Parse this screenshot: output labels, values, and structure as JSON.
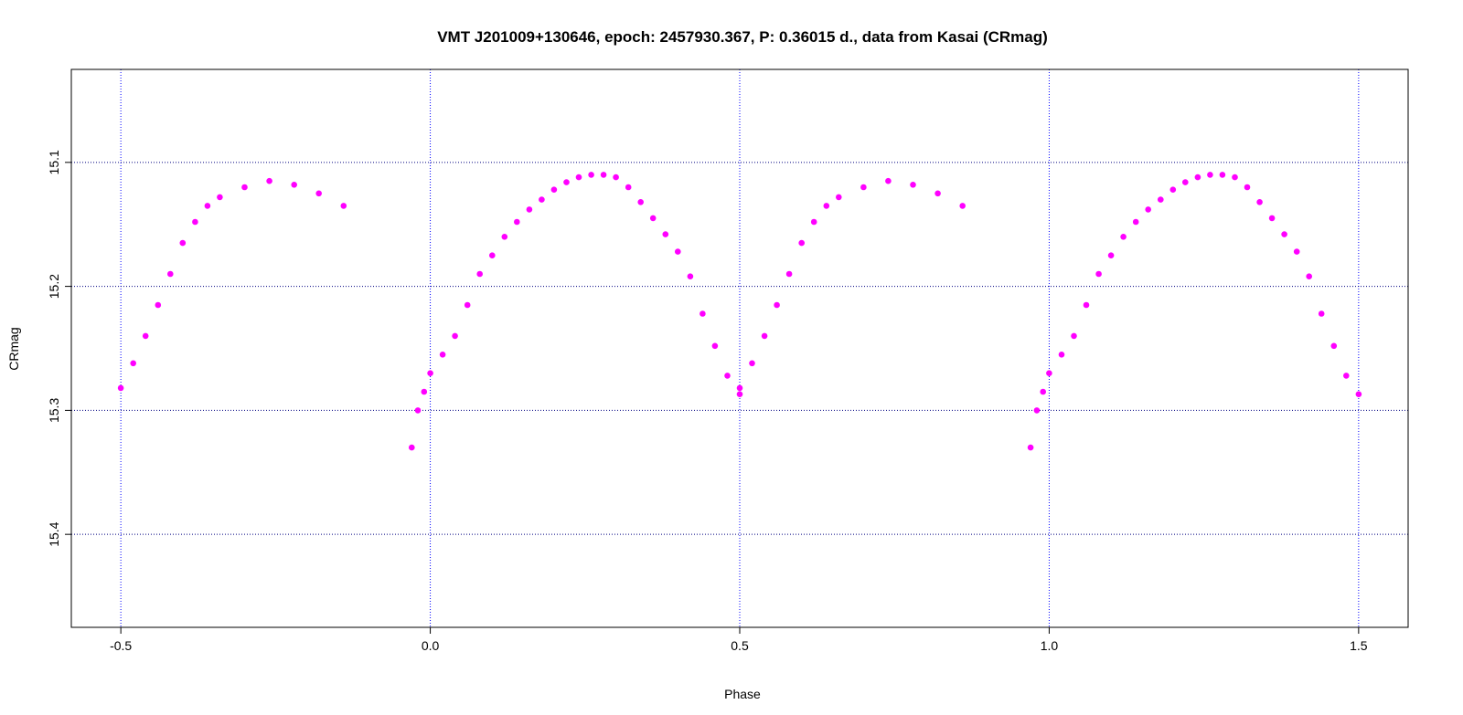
{
  "chart_data": {
    "type": "scatter",
    "title": "VMT J201009+130646, epoch: 2457930.367, P: 0.36015 d., data from Kasai (CRmag)",
    "xlabel": "Phase",
    "ylabel": "CRmag",
    "xlim": [
      -0.58,
      1.58
    ],
    "ylim": [
      15.475,
      15.025
    ],
    "y_inverted": true,
    "x_ticks": [
      -0.5,
      0.0,
      0.5,
      1.0,
      1.5
    ],
    "x_tick_labels": [
      "-0.5",
      "0.0",
      "0.5",
      "1.0",
      "1.5"
    ],
    "y_ticks": [
      15.1,
      15.2,
      15.3,
      15.4
    ],
    "y_tick_labels": [
      "15.1",
      "15.2",
      "15.3",
      "15.4"
    ],
    "grid": {
      "vertical_at": [
        -0.5,
        0.0,
        0.5,
        1.0,
        1.5
      ],
      "horizontal_at": [
        15.1,
        15.2,
        15.3,
        15.4
      ],
      "vertical_color": "#0000ff",
      "horizontal_color": "#000080"
    },
    "marker_color": "#ff00ff",
    "phase_wrap": "points shown at phase and phase+1",
    "light_curve": [
      [
        -0.5,
        15.282
      ],
      [
        -0.48,
        15.262
      ],
      [
        -0.46,
        15.24
      ],
      [
        -0.44,
        15.215
      ],
      [
        -0.42,
        15.19
      ],
      [
        -0.4,
        15.165
      ],
      [
        -0.38,
        15.148
      ],
      [
        -0.36,
        15.135
      ],
      [
        -0.34,
        15.128
      ],
      [
        -0.3,
        15.12
      ],
      [
        -0.26,
        15.115
      ],
      [
        -0.22,
        15.118
      ],
      [
        -0.18,
        15.125
      ],
      [
        -0.14,
        15.135
      ],
      [
        -0.03,
        15.33
      ],
      [
        -0.02,
        15.3
      ],
      [
        -0.01,
        15.285
      ],
      [
        0.0,
        15.27
      ],
      [
        0.02,
        15.255
      ],
      [
        0.04,
        15.24
      ],
      [
        0.06,
        15.215
      ],
      [
        0.08,
        15.19
      ],
      [
        0.1,
        15.175
      ],
      [
        0.12,
        15.16
      ],
      [
        0.14,
        15.148
      ],
      [
        0.16,
        15.138
      ],
      [
        0.18,
        15.13
      ],
      [
        0.2,
        15.122
      ],
      [
        0.22,
        15.116
      ],
      [
        0.24,
        15.112
      ],
      [
        0.26,
        15.11
      ],
      [
        0.28,
        15.11
      ],
      [
        0.3,
        15.112
      ],
      [
        0.32,
        15.12
      ],
      [
        0.34,
        15.132
      ],
      [
        0.36,
        15.145
      ],
      [
        0.38,
        15.158
      ],
      [
        0.4,
        15.172
      ],
      [
        0.42,
        15.192
      ],
      [
        0.44,
        15.222
      ],
      [
        0.46,
        15.248
      ],
      [
        0.48,
        15.272
      ],
      [
        0.5,
        15.287
      ]
    ]
  }
}
